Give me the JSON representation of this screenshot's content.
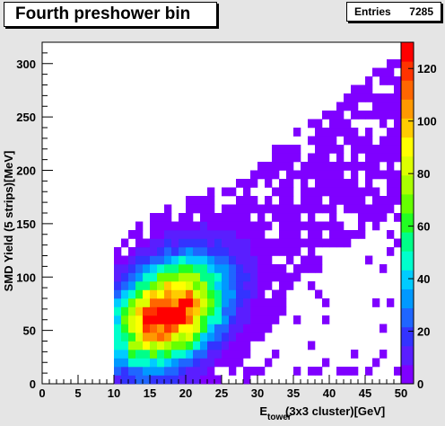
{
  "title": "Fourth preshower bin",
  "stats": {
    "label": "Entries",
    "value": "7285"
  },
  "chart_data": {
    "type": "heatmap",
    "title": "Fourth preshower bin",
    "xlabel_main": "E",
    "xlabel_sub": "tower",
    "xlabel_rest": "(3x3 cluster)[GeV]",
    "ylabel": "SMD Yield (5 strips)[MeV]",
    "xlim": [
      0,
      50
    ],
    "ylim": [
      0,
      320
    ],
    "zlim": [
      0,
      130
    ],
    "x_ticks": [
      0,
      5,
      10,
      15,
      20,
      25,
      30,
      35,
      40,
      45,
      50
    ],
    "y_ticks": [
      0,
      50,
      100,
      150,
      200,
      250,
      300
    ],
    "z_ticks": [
      0,
      20,
      40,
      60,
      80,
      100,
      120
    ],
    "bin_width_x": 1,
    "bin_width_y": 8,
    "colorscale": [
      "#7f00ff",
      "#5a1eff",
      "#3333ff",
      "#1f66ff",
      "#0099ff",
      "#00ccff",
      "#00ffcc",
      "#00ff88",
      "#22ff22",
      "#66ff00",
      "#aaff00",
      "#ddff00",
      "#ffff00",
      "#ffcc00",
      "#ff9900",
      "#ff6600",
      "#ff3300",
      "#ff0000"
    ],
    "hotspot": {
      "x": 17.5,
      "y": 66,
      "peak": 128
    },
    "grid": false,
    "legend": "colorbar-right"
  }
}
